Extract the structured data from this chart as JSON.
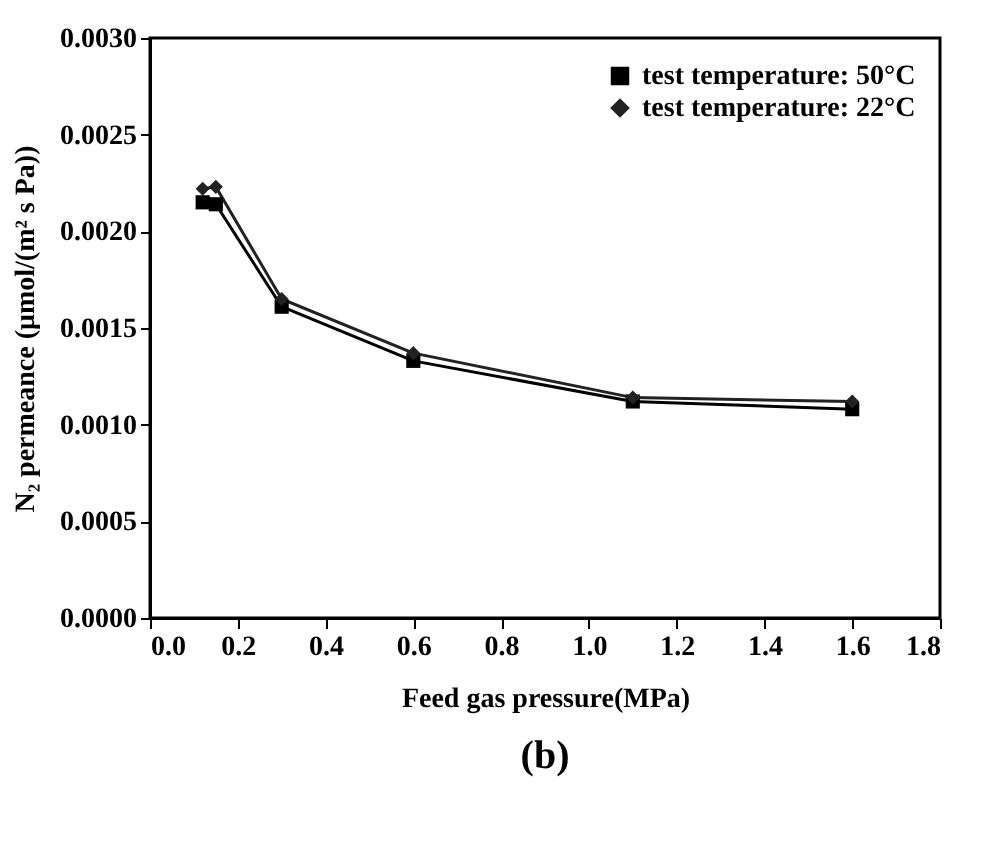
{
  "chart_data": {
    "type": "line",
    "xlabel": "Feed gas pressure(MPa)",
    "ylabel": "N₂ permeance (μmol/(m² s Pa))",
    "annotations": [
      "(b)"
    ],
    "x": [
      0.12,
      0.15,
      0.3,
      0.6,
      1.1,
      1.6
    ],
    "series": [
      {
        "name": "test temperature: 50°C",
        "color": "#000000",
        "marker": "square",
        "values": [
          0.00215,
          0.00214,
          0.00161,
          0.00133,
          0.00112,
          0.00108
        ]
      },
      {
        "name": "test temperature: 22°C",
        "color": "#222222",
        "marker": "diamond",
        "values": [
          0.00222,
          0.00223,
          0.00165,
          0.00137,
          0.00114,
          0.00112
        ]
      }
    ],
    "xlim": [
      0,
      1.8
    ],
    "xticks": [
      {
        "value": 0,
        "label": "0.0"
      },
      0.2,
      0.4,
      0.6,
      0.8,
      {
        "value": 1,
        "label": "1.0"
      },
      1.2,
      1.4,
      1.6,
      1.8
    ],
    "ylim": [
      0,
      0.003
    ],
    "yticks": [
      {
        "value": 0,
        "label": "0.0000"
      },
      {
        "value": 0.0005,
        "label": "0.0005"
      },
      {
        "value": 0.001,
        "label": "0.0010"
      },
      {
        "value": 0.0015,
        "label": "0.0015"
      },
      {
        "value": 0.002,
        "label": "0.0020"
      },
      {
        "value": 0.0025,
        "label": "0.0025"
      },
      {
        "value": 0.003,
        "label": "0.0030"
      }
    ],
    "legend": "top right",
    "grid": false,
    "line_style": "solid"
  }
}
